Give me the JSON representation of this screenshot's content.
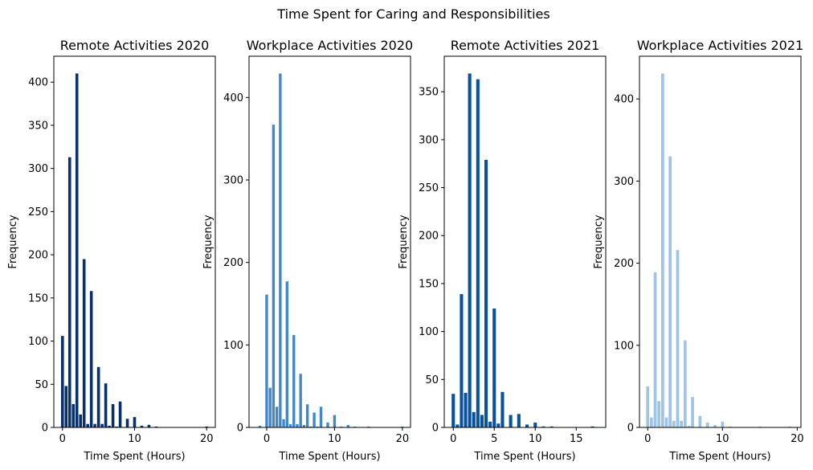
{
  "suptitle": "Time Spent for Caring and Responsibilities",
  "chart_data": [
    {
      "type": "bar",
      "title": "Remote Activities 2020",
      "xlabel": "Time Spent (Hours)",
      "ylabel": "Frequency",
      "color": "#08306b",
      "xlim": [
        -1.2,
        21.2
      ],
      "ylim": [
        0,
        430
      ],
      "xticks": [
        0,
        10,
        20
      ],
      "yticks": [
        0,
        50,
        100,
        150,
        200,
        250,
        300,
        350,
        400
      ],
      "x": [
        0,
        0.5,
        1,
        1.5,
        2,
        2.5,
        3,
        3.5,
        4,
        4.5,
        5,
        5.5,
        6,
        6.5,
        7,
        7.5,
        8,
        9,
        10,
        11,
        12,
        13,
        20
      ],
      "values": [
        106,
        48,
        313,
        27,
        410,
        15,
        195,
        4,
        158,
        4,
        70,
        4,
        51,
        2,
        27,
        1,
        30,
        10,
        12,
        2,
        3,
        1,
        1
      ]
    },
    {
      "type": "bar",
      "title": "Workplace Activities 2020",
      "xlabel": "Time Spent (Hours)",
      "ylabel": "Frequency",
      "color": "#4187c9",
      "xlim": [
        -2.6,
        21.2
      ],
      "ylim": [
        0,
        450
      ],
      "xticks": [
        0,
        10,
        20
      ],
      "yticks": [
        0,
        100,
        200,
        300,
        400
      ],
      "x": [
        -1,
        0,
        0.5,
        1,
        1.5,
        2,
        2.5,
        3,
        3.5,
        4,
        4.5,
        5,
        5.5,
        6,
        6.5,
        7,
        7.5,
        8,
        9,
        10,
        11,
        12,
        13,
        15,
        20
      ],
      "values": [
        2,
        161,
        48,
        367,
        25,
        429,
        10,
        177,
        4,
        112,
        4,
        65,
        3,
        28,
        1,
        18,
        1,
        25,
        6,
        15,
        1,
        3,
        1,
        1,
        1
      ]
    },
    {
      "type": "bar",
      "title": "Remote Activities 2021",
      "xlabel": "Time Spent (Hours)",
      "ylabel": "Frequency",
      "color": "#08519c",
      "xlim": [
        -1.1,
        18.6
      ],
      "ylim": [
        0,
        387
      ],
      "xticks": [
        0,
        5,
        10,
        15
      ],
      "yticks": [
        0,
        50,
        100,
        150,
        200,
        250,
        300,
        350
      ],
      "x": [
        0,
        0.5,
        1,
        1.5,
        2,
        2.5,
        3,
        3.5,
        4,
        4.5,
        5,
        5.5,
        6,
        7,
        8,
        9,
        10,
        11,
        12,
        17
      ],
      "values": [
        35,
        3,
        139,
        36,
        369,
        16,
        363,
        13,
        279,
        6,
        124,
        4,
        37,
        13,
        14,
        3,
        5,
        1,
        1,
        1
      ]
    },
    {
      "type": "bar",
      "title": "Workplace Activities 2021",
      "xlabel": "Time Spent (Hours)",
      "ylabel": "Frequency",
      "color": "#9ec4e7",
      "xlim": [
        -1.1,
        20.5
      ],
      "ylim": [
        0,
        452
      ],
      "xticks": [
        0,
        10,
        20
      ],
      "yticks": [
        0,
        100,
        200,
        300,
        400
      ],
      "x": [
        0,
        0.5,
        1,
        1.5,
        2,
        2.5,
        3,
        3.5,
        4,
        4.5,
        5,
        5.5,
        6,
        7,
        8,
        9,
        10,
        11,
        15,
        19
      ],
      "values": [
        50,
        12,
        189,
        32,
        431,
        12,
        330,
        8,
        216,
        8,
        106,
        2,
        37,
        14,
        6,
        3,
        7,
        1,
        1,
        1
      ]
    }
  ]
}
